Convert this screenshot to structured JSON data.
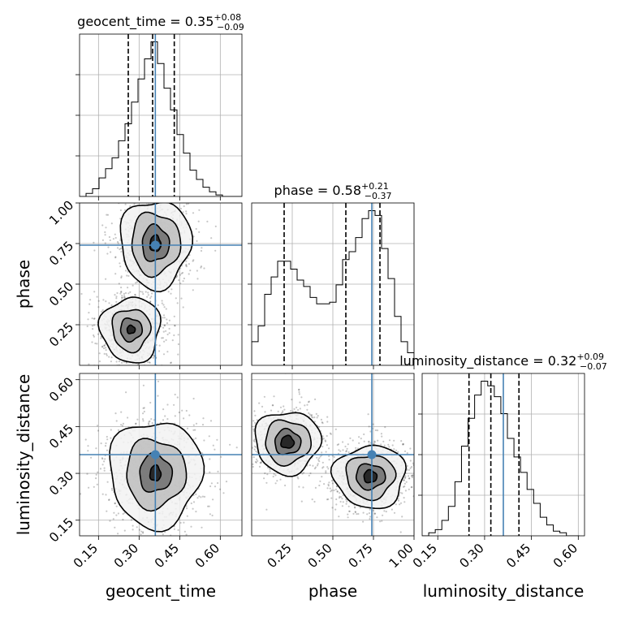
{
  "chart_data": {
    "type": "corner",
    "parameters": [
      "geocent_time",
      "phase",
      "luminosity_distance"
    ],
    "titles": [
      {
        "name": "geocent_time",
        "median": "0.35",
        "upper": "+0.08",
        "lower": "−0.09"
      },
      {
        "name": "phase",
        "median": "0.58",
        "upper": "+0.21",
        "lower": "−0.37"
      },
      {
        "name": "luminosity_distance",
        "median": "0.32",
        "upper": "+0.09",
        "lower": "−0.07"
      }
    ],
    "ranges": {
      "geocent_time": [
        0.08,
        0.68
      ],
      "phase": [
        0.0,
        1.0
      ],
      "luminosity_distance": [
        0.1,
        0.62
      ]
    },
    "ticks": {
      "geocent_time": [
        "0.15",
        "0.30",
        "0.45",
        "0.60"
      ],
      "phase": [
        "0.25",
        "0.50",
        "0.75",
        "1.00"
      ],
      "luminosity_distance": [
        "0.15",
        "0.30",
        "0.45",
        "0.60"
      ]
    },
    "truths": {
      "geocent_time": 0.36,
      "phase": 0.74,
      "luminosity_distance": 0.36
    },
    "quantiles": {
      "geocent_time": [
        0.26,
        0.35,
        0.43
      ],
      "phase": [
        0.2,
        0.58,
        0.79
      ],
      "luminosity_distance": [
        0.25,
        0.32,
        0.41
      ]
    },
    "histograms": {
      "geocent_time": {
        "edges": [
          0.08,
          0.104,
          0.128,
          0.152,
          0.176,
          0.2,
          0.224,
          0.248,
          0.272,
          0.296,
          0.32,
          0.344,
          0.368,
          0.392,
          0.416,
          0.44,
          0.464,
          0.488,
          0.512,
          0.536,
          0.56,
          0.584,
          0.608,
          0.632,
          0.656,
          0.68
        ],
        "counts": [
          0,
          2,
          5,
          12,
          18,
          25,
          36,
          47,
          61,
          76,
          89,
          100,
          86,
          70,
          56,
          40,
          28,
          17,
          11,
          6,
          3,
          1,
          0,
          0,
          0
        ]
      },
      "phase": {
        "edges": [
          0.0,
          0.04,
          0.08,
          0.12,
          0.16,
          0.2,
          0.24,
          0.28,
          0.32,
          0.36,
          0.4,
          0.44,
          0.48,
          0.52,
          0.56,
          0.6,
          0.64,
          0.68,
          0.72,
          0.76,
          0.8,
          0.84,
          0.88,
          0.92,
          0.96,
          1.0
        ],
        "counts": [
          15,
          25,
          45,
          56,
          66,
          66,
          61,
          54,
          50,
          43,
          39,
          39,
          40,
          51,
          67,
          72,
          81,
          93,
          98,
          95,
          74,
          55,
          31,
          15,
          8
        ]
      },
      "luminosity_distance": {
        "edges": [
          0.1,
          0.121,
          0.142,
          0.163,
          0.184,
          0.205,
          0.226,
          0.247,
          0.268,
          0.289,
          0.31,
          0.331,
          0.352,
          0.373,
          0.394,
          0.415,
          0.436,
          0.457,
          0.478,
          0.499,
          0.52,
          0.541,
          0.562,
          0.583,
          0.604
        ],
        "counts": [
          0,
          2,
          4,
          10,
          19,
          35,
          58,
          76,
          91,
          100,
          97,
          90,
          79,
          63,
          51,
          41,
          30,
          21,
          12,
          7,
          3,
          2,
          0,
          0
        ]
      }
    },
    "joint": [
      {
        "x": "geocent_time",
        "y": "phase",
        "modes": [
          {
            "cx": 0.36,
            "cy": 0.75,
            "rx": [
              0.02,
              0.05,
              0.09,
              0.13
            ],
            "ry": [
              0.05,
              0.11,
              0.19,
              0.27
            ]
          },
          {
            "cx": 0.27,
            "cy": 0.22,
            "rx": [
              0.015,
              0.04,
              0.07,
              0.11
            ],
            "ry": [
              0.025,
              0.07,
              0.13,
              0.2
            ]
          }
        ]
      },
      {
        "x": "geocent_time",
        "y": "luminosity_distance",
        "modes": [
          {
            "cx": 0.36,
            "cy": 0.3,
            "rx": [
              0.02,
              0.06,
              0.11,
              0.17
            ],
            "ry": [
              0.025,
              0.06,
              0.11,
              0.17
            ]
          }
        ]
      },
      {
        "x": "phase",
        "y": "luminosity_distance",
        "modes": [
          {
            "cx": 0.22,
            "cy": 0.4,
            "rx": [
              0.04,
              0.08,
              0.14,
              0.2
            ],
            "ry": [
              0.02,
              0.04,
              0.07,
              0.1
            ]
          },
          {
            "cx": 0.73,
            "cy": 0.29,
            "rx": [
              0.04,
              0.09,
              0.15,
              0.22
            ],
            "ry": [
              0.02,
              0.04,
              0.07,
              0.1
            ]
          }
        ]
      }
    ]
  }
}
